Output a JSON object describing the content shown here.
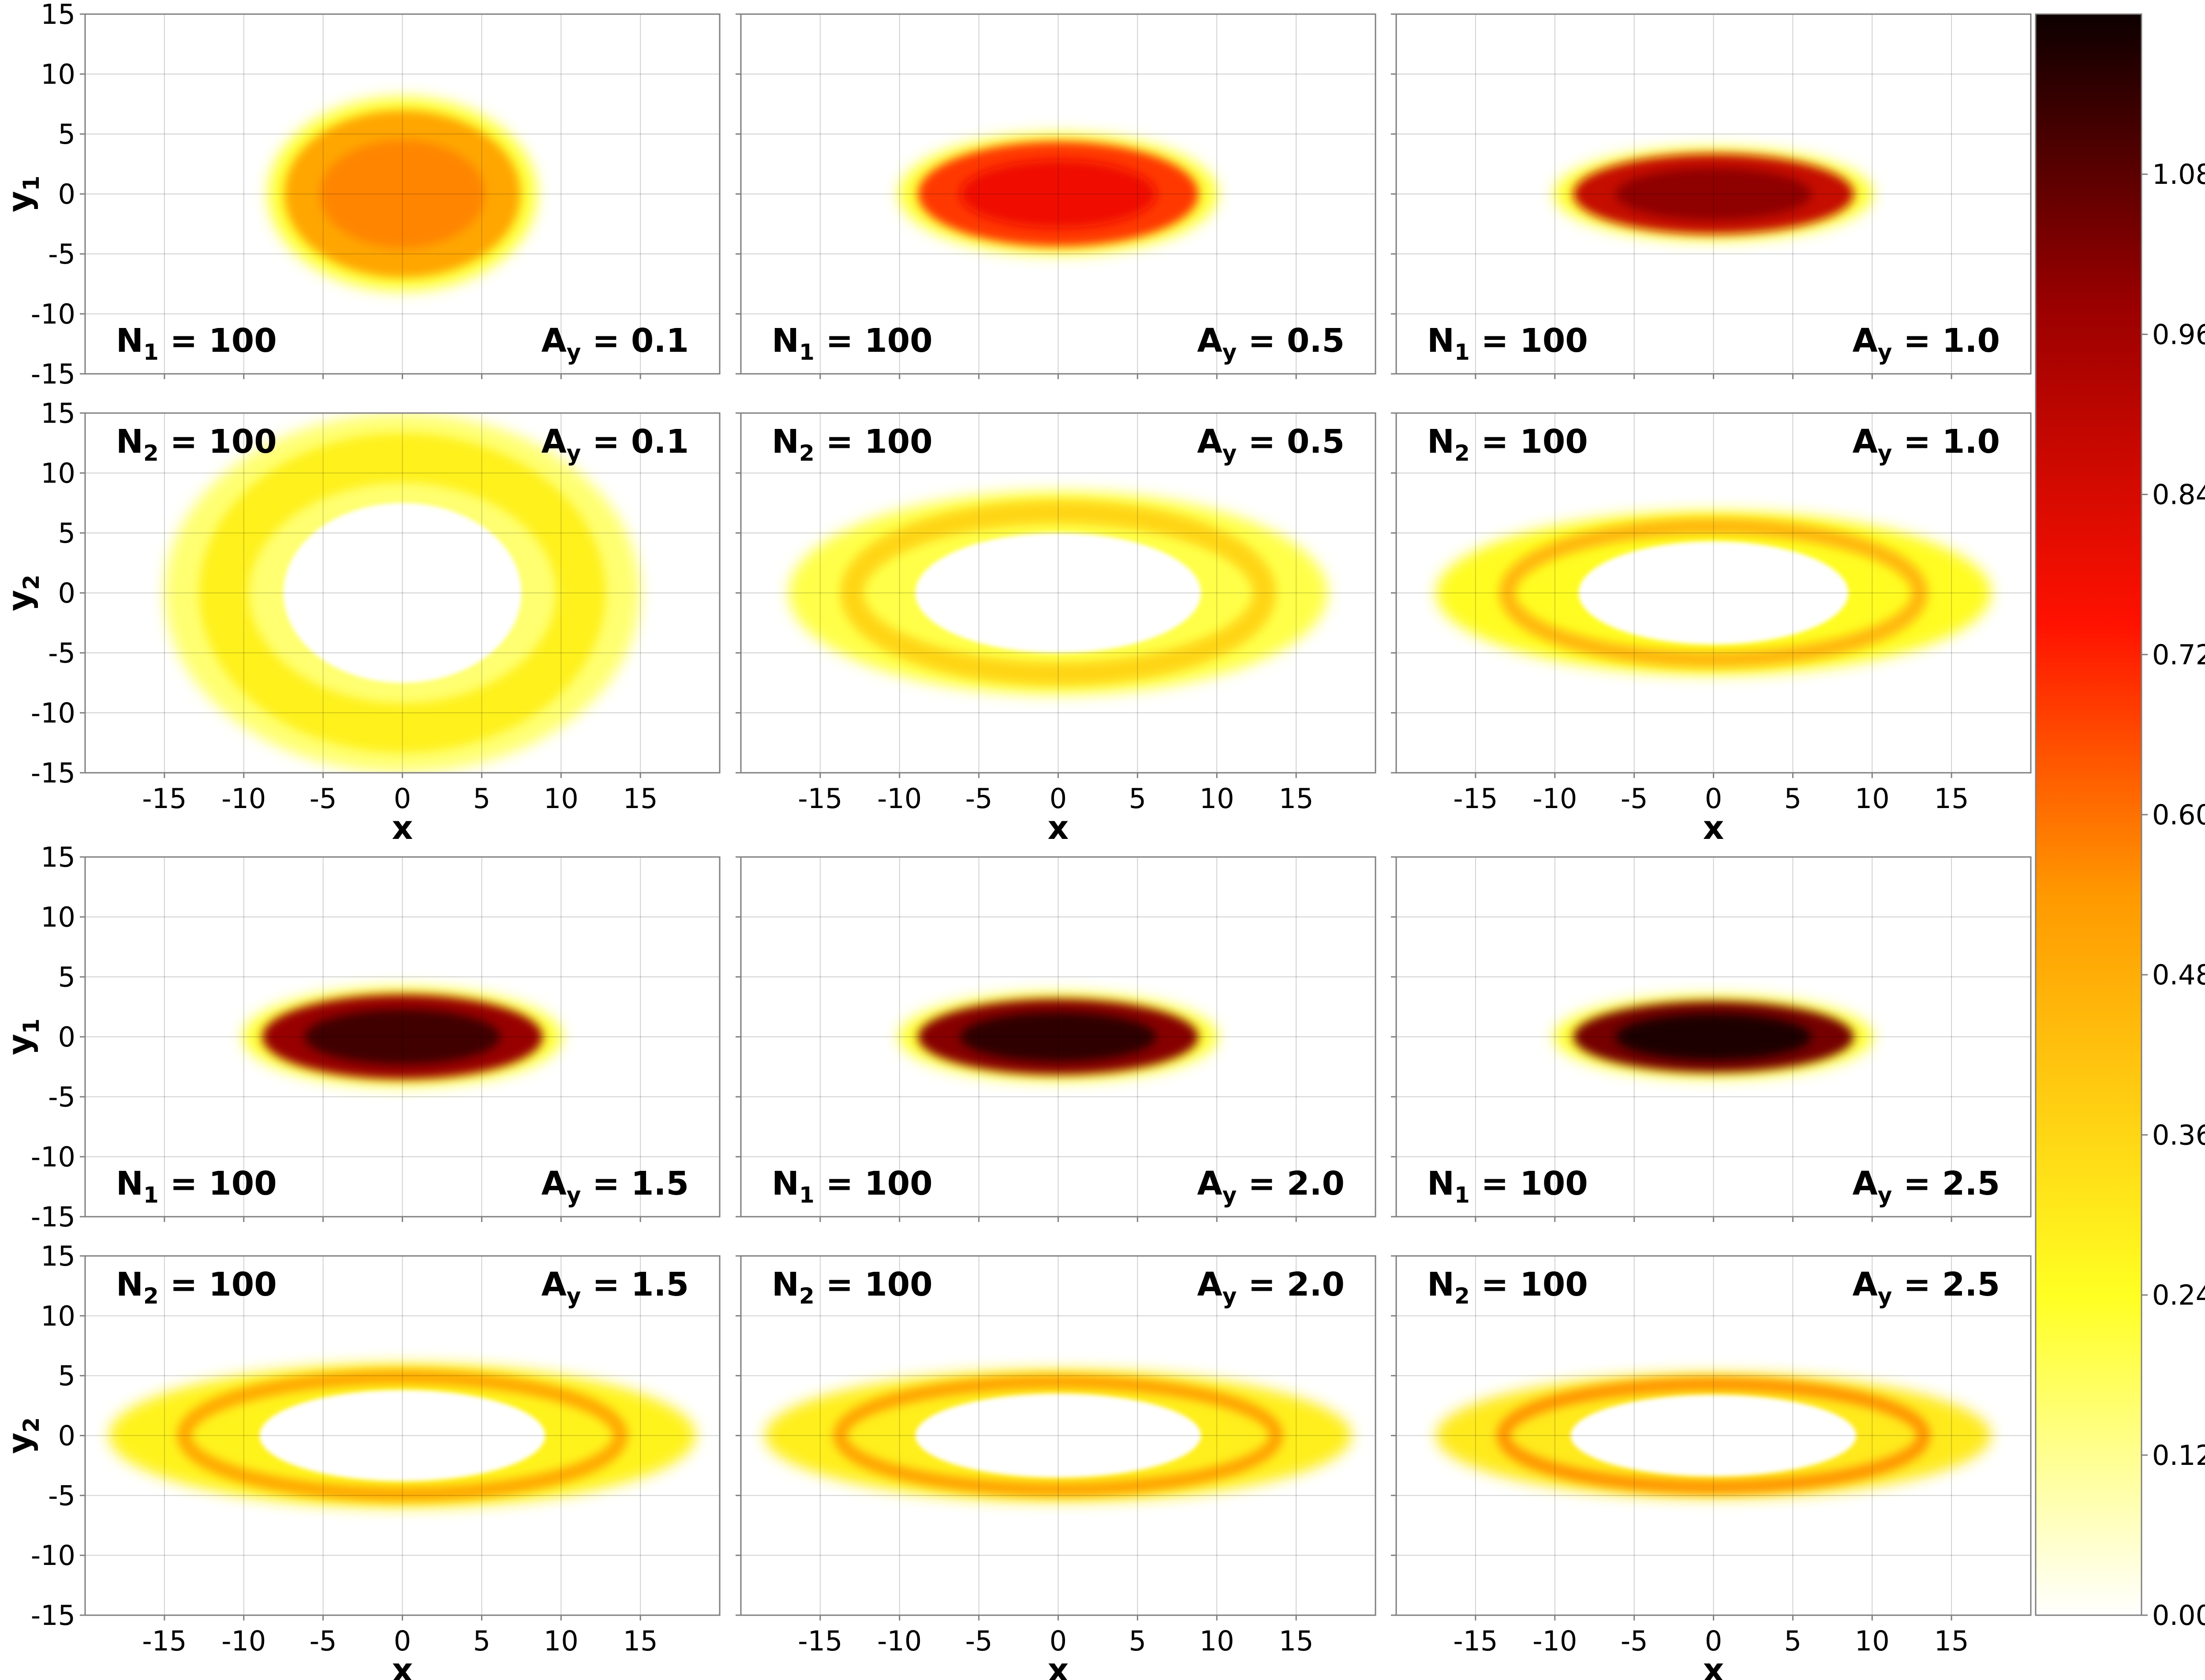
{
  "chart_data": {
    "type": "heatmap",
    "colormap": "hot_r",
    "xlim": [
      -20,
      20
    ],
    "ylim": [
      -15,
      15
    ],
    "x_ticks": [
      "-15",
      "-10",
      "-5",
      "0",
      "5",
      "10",
      "15"
    ],
    "y_ticks": [
      "15",
      "10",
      "5",
      "0",
      "-5",
      "-10",
      "-15"
    ],
    "xlabel": "x",
    "colorbar": {
      "vmin": 0.0,
      "vmax": 1.2,
      "ticks": [
        "1.08",
        "0.96",
        "0.84",
        "0.72",
        "0.60",
        "0.48",
        "0.36",
        "0.24",
        "0.12",
        "0.00"
      ]
    },
    "panels": [
      {
        "row": 0,
        "col": 0,
        "ylabel": "y1",
        "n_label": "N1 = 100",
        "n_base": "N",
        "n_sub": "1",
        "n_value": "100",
        "a_label": "Ay = 0.1",
        "a_value": "0.1",
        "labels_at": "bottom",
        "shape": "disk",
        "semi_x": 8.0,
        "semi_y": 7.5,
        "peak": 0.57
      },
      {
        "row": 0,
        "col": 1,
        "ylabel": "y1",
        "n_label": "N1 = 100",
        "n_base": "N",
        "n_sub": "1",
        "n_value": "100",
        "a_label": "Ay = 0.5",
        "a_value": "0.5",
        "labels_at": "bottom",
        "shape": "disk",
        "semi_x": 9.5,
        "semi_y": 4.7,
        "peak": 0.78
      },
      {
        "row": 0,
        "col": 2,
        "ylabel": "y1",
        "n_label": "N1 = 100",
        "n_base": "N",
        "n_sub": "1",
        "n_value": "100",
        "a_label": "Ay = 1.0",
        "a_value": "1.0",
        "labels_at": "bottom",
        "shape": "disk",
        "semi_x": 9.5,
        "semi_y": 3.6,
        "peak": 1.0
      },
      {
        "row": 1,
        "col": 0,
        "ylabel": "y2",
        "n_label": "N2 = 100",
        "n_base": "N",
        "n_sub": "2",
        "n_value": "100",
        "a_label": "Ay = 0.1",
        "a_value": "0.1",
        "labels_at": "top",
        "shape": "ring",
        "inner_x": 7.5,
        "inner_y": 7.5,
        "outer_x": 15.0,
        "outer_y": 15.0,
        "peak": 0.28
      },
      {
        "row": 1,
        "col": 1,
        "ylabel": "y2",
        "n_label": "N2 = 100",
        "n_base": "N",
        "n_sub": "2",
        "n_value": "100",
        "a_label": "Ay = 0.5",
        "a_value": "0.5",
        "labels_at": "top",
        "shape": "ring",
        "inner_x": 9.0,
        "inner_y": 5.0,
        "outer_x": 17.0,
        "outer_y": 8.5,
        "peak": 0.36
      },
      {
        "row": 1,
        "col": 2,
        "ylabel": "y2",
        "n_label": "N2 = 100",
        "n_base": "N",
        "n_sub": "2",
        "n_value": "100",
        "a_label": "Ay = 1.0",
        "a_value": "1.0",
        "labels_at": "top",
        "shape": "ring",
        "inner_x": 8.5,
        "inner_y": 4.3,
        "outer_x": 17.5,
        "outer_y": 6.8,
        "peak": 0.45
      },
      {
        "row": 2,
        "col": 0,
        "ylabel": "y1",
        "n_label": "N1 = 100",
        "n_base": "N",
        "n_sub": "1",
        "n_value": "100",
        "a_label": "Ay = 1.5",
        "a_value": "1.5",
        "labels_at": "bottom",
        "shape": "disk",
        "semi_x": 9.5,
        "semi_y": 3.8,
        "peak": 1.12
      },
      {
        "row": 2,
        "col": 1,
        "ylabel": "y1",
        "n_label": "N1 = 100",
        "n_base": "N",
        "n_sub": "1",
        "n_value": "100",
        "a_label": "Ay = 2.0",
        "a_value": "2.0",
        "labels_at": "bottom",
        "shape": "disk",
        "semi_x": 9.5,
        "semi_y": 3.4,
        "peak": 1.15
      },
      {
        "row": 2,
        "col": 2,
        "ylabel": "y1",
        "n_label": "N1 = 100",
        "n_base": "N",
        "n_sub": "1",
        "n_value": "100",
        "a_label": "Ay = 2.5",
        "a_value": "2.5",
        "labels_at": "bottom",
        "shape": "disk",
        "semi_x": 9.5,
        "semi_y": 3.2,
        "peak": 1.18
      },
      {
        "row": 3,
        "col": 0,
        "ylabel": "y2",
        "n_label": "N2 = 100",
        "n_base": "N",
        "n_sub": "2",
        "n_value": "100",
        "a_label": "Ay = 1.5",
        "a_value": "1.5",
        "labels_at": "top",
        "shape": "ring",
        "inner_x": 9.0,
        "inner_y": 3.8,
        "outer_x": 18.5,
        "outer_y": 6.0,
        "peak": 0.5
      },
      {
        "row": 3,
        "col": 1,
        "ylabel": "y2",
        "n_label": "N2 = 100",
        "n_base": "N",
        "n_sub": "2",
        "n_value": "100",
        "a_label": "Ay = 2.0",
        "a_value": "2.0",
        "labels_at": "top",
        "shape": "ring",
        "inner_x": 9.0,
        "inner_y": 3.5,
        "outer_x": 18.5,
        "outer_y": 5.5,
        "peak": 0.52
      },
      {
        "row": 3,
        "col": 2,
        "ylabel": "y2",
        "n_label": "N2 = 100",
        "n_base": "N",
        "n_sub": "2",
        "n_value": "100",
        "a_label": "Ay = 2.5",
        "a_value": "2.5",
        "labels_at": "top",
        "shape": "ring",
        "inner_x": 9.0,
        "inner_y": 3.4,
        "outer_x": 17.5,
        "outer_y": 5.2,
        "peak": 0.55
      }
    ]
  }
}
